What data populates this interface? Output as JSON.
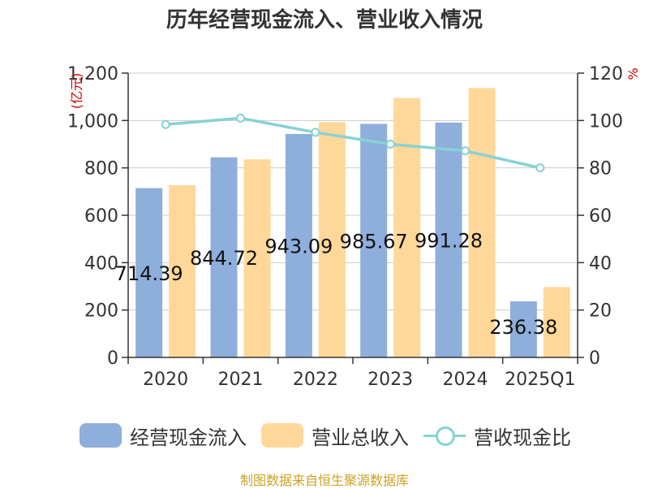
{
  "chart_data": {
    "type": "bar",
    "title": "历年经营现金流入、营业收入情况",
    "categories": [
      "2020",
      "2021",
      "2022",
      "2023",
      "2024",
      "2025Q1"
    ],
    "series": [
      {
        "name": "经营现金流入",
        "type": "bar",
        "axis": "left",
        "color": "#8eaedb",
        "values": [
          714.39,
          844.72,
          943.09,
          985.67,
          991.28,
          236.38
        ],
        "labels": [
          "714.39",
          "844.72",
          "943.09",
          "985.67",
          "991.28",
          "236.38"
        ]
      },
      {
        "name": "营业总收入",
        "type": "bar",
        "axis": "left",
        "color": "#ffd899",
        "values": [
          727,
          836,
          993,
          1095,
          1137,
          297
        ]
      },
      {
        "name": "营收现金比",
        "type": "line",
        "axis": "right",
        "color": "#86d2d5",
        "values": [
          98.3,
          101.0,
          95.0,
          90.0,
          87.2,
          80.0
        ]
      }
    ],
    "ylabel": "亿元",
    "y2label": "%",
    "ylim": [
      0,
      1200
    ],
    "y2lim": [
      0,
      120
    ],
    "yticks": [
      "0",
      "200",
      "400",
      "600",
      "800",
      "1,000",
      "1,200"
    ],
    "y2ticks": [
      "0",
      "20",
      "40",
      "60",
      "80",
      "100",
      "120"
    ],
    "legend_position": "bottom",
    "grid": true
  },
  "footer": {
    "source": "制图数据来自恒生聚源数据库"
  }
}
